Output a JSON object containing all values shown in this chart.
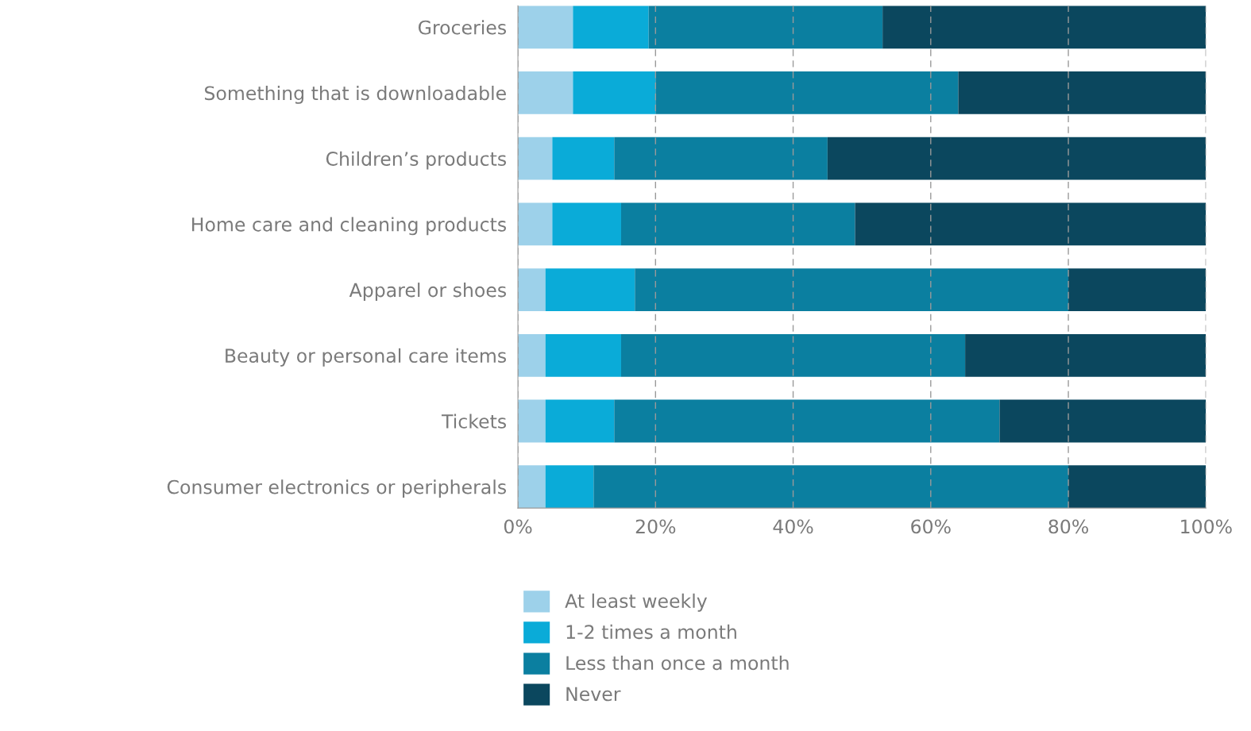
{
  "chart_data": {
    "type": "bar",
    "orientation": "horizontal",
    "stacked": true,
    "categories": [
      "Groceries",
      "Something that is downloadable",
      "Children’s products",
      "Home care and cleaning products",
      "Apparel or shoes",
      "Beauty or personal care items",
      "Tickets",
      "Consumer electronics or peripherals"
    ],
    "series": [
      {
        "name": "At least weekly",
        "color": "#9dd1ea",
        "values": [
          8,
          8,
          5,
          5,
          4,
          4,
          4,
          4
        ]
      },
      {
        "name": "1-2 times a month",
        "color": "#0aabd8",
        "values": [
          11,
          12,
          9,
          10,
          13,
          11,
          10,
          7
        ]
      },
      {
        "name": "Less than once a month",
        "color": "#0b7fa0",
        "values": [
          34,
          44,
          31,
          34,
          63,
          50,
          56,
          69
        ]
      },
      {
        "name": "Never",
        "color": "#0b475e",
        "values": [
          47,
          36,
          55,
          51,
          20,
          35,
          30,
          20
        ]
      }
    ],
    "xlim": [
      0,
      100
    ],
    "xticks": [
      {
        "value": 0,
        "label": "0%"
      },
      {
        "value": 20,
        "label": "20%"
      },
      {
        "value": 40,
        "label": "40%"
      },
      {
        "value": 60,
        "label": "60%"
      },
      {
        "value": 80,
        "label": "80%"
      },
      {
        "value": 100,
        "label": "100%"
      }
    ],
    "grid": "x",
    "legend": "bottom"
  }
}
